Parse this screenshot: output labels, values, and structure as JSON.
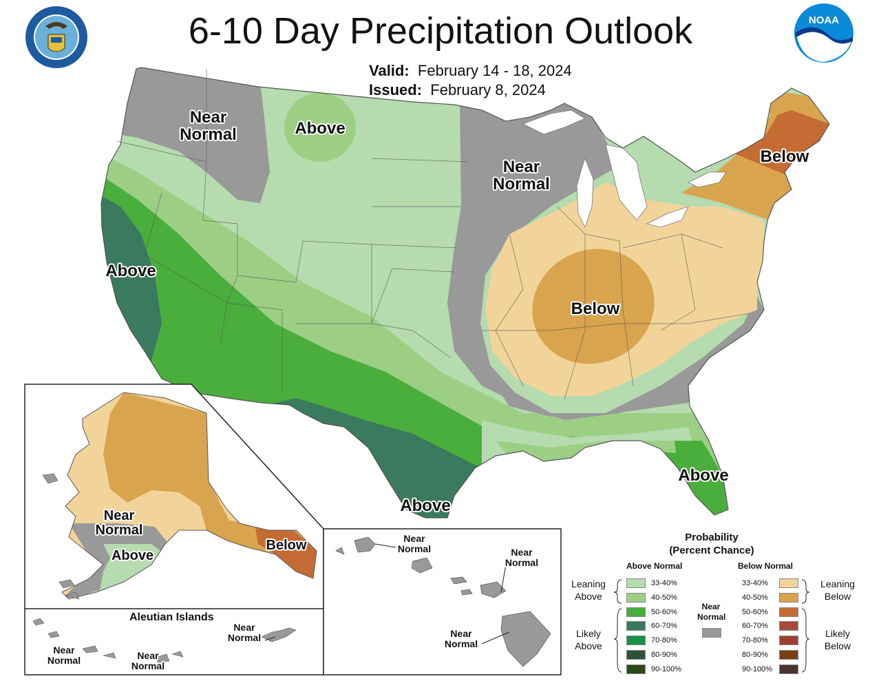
{
  "header": {
    "title": "6-10 Day Precipitation Outlook",
    "valid_label": "Valid:",
    "valid_value": "February 14 - 18, 2024",
    "issued_label": "Issued:",
    "issued_value": "February 8, 2024"
  },
  "logos": {
    "seal_icon": "department-of-commerce-seal",
    "seal_text": "DEPARTMENT OF COMMERCE · UNITED STATES OF AMERICA",
    "noaa_icon": "noaa-logo",
    "noaa_text": "NOAA"
  },
  "colors": {
    "above_33_40": "#b5dbaf",
    "above_40_50": "#9ccf84",
    "above_50_60": "#4aae3c",
    "above_60_70": "#3a7a5e",
    "above_70_80": "#1a9248",
    "above_80_90": "#2f5137",
    "above_90_100": "#2a4a1a",
    "near_normal": "#999999",
    "below_33_40": "#f2d49a",
    "below_40_50": "#d9a44e",
    "below_50_60": "#c46c34",
    "below_60_70": "#a64a3a",
    "below_70_80": "#9b4030",
    "below_80_90": "#7a4010",
    "below_90_100": "#4a3430"
  },
  "map_labels": {
    "conus": [
      {
        "id": "nw-near",
        "text": "Near Normal"
      },
      {
        "id": "mt-above",
        "text": "Above"
      },
      {
        "id": "mn-near",
        "text": "Near Normal"
      },
      {
        "id": "ne-below",
        "text": "Below"
      },
      {
        "id": "ca-above",
        "text": "Above"
      },
      {
        "id": "oh-below",
        "text": "Below"
      },
      {
        "id": "tx-above",
        "text": "Above"
      },
      {
        "id": "fl-above",
        "text": "Above"
      }
    ],
    "alaska": [
      {
        "id": "ak-near",
        "text": "Near Normal"
      },
      {
        "id": "ak-above",
        "text": "Above"
      },
      {
        "id": "ak-below",
        "text": "Below"
      }
    ],
    "aleutian": {
      "title": "Aleutian Islands",
      "labels": [
        "Near Normal",
        "Near Normal",
        "Near Normal"
      ]
    },
    "hawaii": {
      "labels": [
        "Near Normal",
        "Near Normal",
        "Near Normal"
      ]
    }
  },
  "legend": {
    "title_line1": "Probability",
    "title_line2": "(Percent Chance)",
    "above_head": "Above Normal",
    "below_head": "Below Normal",
    "near_head": "Near Normal",
    "leaning_above": "Leaning Above",
    "likely_above": "Likely Above",
    "leaning_below": "Leaning Below",
    "likely_below": "Likely Below",
    "ranges": [
      "33-40%",
      "40-50%",
      "50-60%",
      "60-70%",
      "70-80%",
      "80-90%",
      "90-100%"
    ]
  }
}
